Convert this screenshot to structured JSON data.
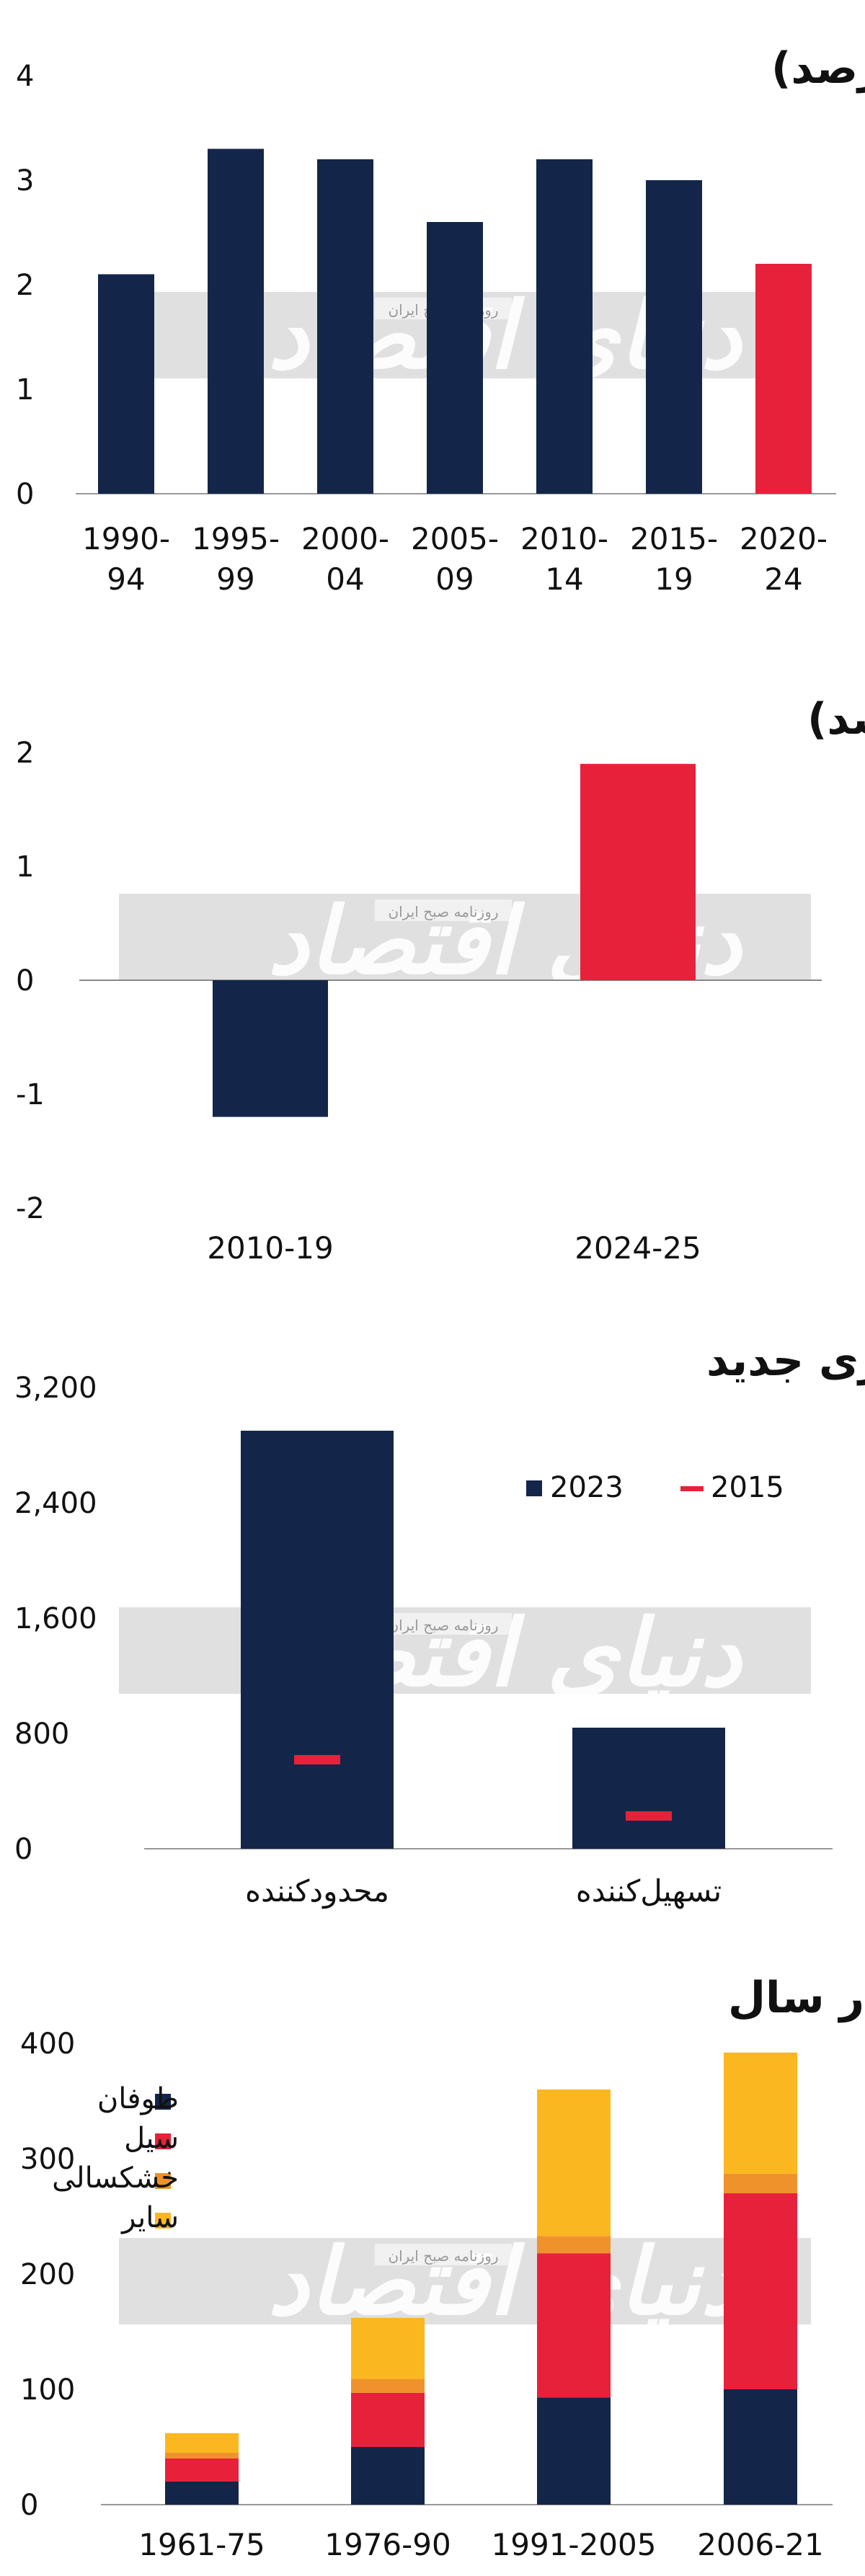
{
  "watermark": {
    "main": "دنیای اقتصاد",
    "sub": "روزنامه صبح ایران"
  },
  "colors": {
    "navy": "#13264a",
    "red": "#e8213a",
    "orange": "#f0922b",
    "amber": "#fbb720",
    "watermark": "#d6d6d6"
  },
  "chart_data": [
    {
      "type": "bar",
      "title": "میانگین رشد GDP جهانی (درصد)",
      "categories": [
        "1990-94",
        "1995-99",
        "2000-04",
        "2005-09",
        "2010-14",
        "2015-19",
        "2020-24"
      ],
      "category_lines": [
        [
          "1990-",
          "94"
        ],
        [
          "1995-",
          "99"
        ],
        [
          "2000-",
          "04"
        ],
        [
          "2005-",
          "09"
        ],
        [
          "2010-",
          "14"
        ],
        [
          "2015-",
          "19"
        ],
        [
          "2020-",
          "24"
        ]
      ],
      "values": [
        2.1,
        3.3,
        3.2,
        2.6,
        3.2,
        3.0,
        2.2
      ],
      "bar_colors": [
        "#13264a",
        "#13264a",
        "#13264a",
        "#13264a",
        "#13264a",
        "#13264a",
        "#e8213a"
      ],
      "ylim": [
        0,
        4
      ],
      "yticks": [
        "0",
        "1",
        "2",
        "3",
        "4"
      ]
    },
    {
      "type": "bar",
      "title": "میانگین نرخ بهره واقعی جهانی(درصد)",
      "categories": [
        "2010-19",
        "2024-25"
      ],
      "values": [
        -1.2,
        1.9
      ],
      "bar_colors": [
        "#13264a",
        "#e8213a"
      ],
      "ylim": [
        -2,
        2
      ],
      "yticks": [
        "-2",
        "-1",
        "0",
        "1",
        "2"
      ]
    },
    {
      "type": "bar",
      "title": "تعداد مصوبات تجاری جدید",
      "categories": [
        "محدودکننده",
        "تسهیل‌کننده"
      ],
      "series": [
        {
          "name": "2023",
          "values": [
            2900,
            840
          ]
        },
        {
          "name": "2015",
          "values": [
            620,
            230
          ]
        }
      ],
      "ylim": [
        0,
        3200
      ],
      "yticks": [
        "0",
        "800",
        "1,600",
        "2,400",
        "3,200"
      ],
      "legend": [
        "2023",
        "2015"
      ]
    },
    {
      "type": "bar",
      "title": "تعداد بلایای طبیعی در سال",
      "categories": [
        "1961-75",
        "1976-90",
        "1991-2005",
        "2006-21"
      ],
      "series": [
        {
          "name": "طوفان",
          "values": [
            20,
            50,
            93,
            100
          ]
        },
        {
          "name": "سیل",
          "values": [
            20,
            47,
            125,
            170
          ]
        },
        {
          "name": "خشکسالی",
          "values": [
            5,
            12,
            15,
            17
          ]
        },
        {
          "name": "سایر",
          "values": [
            17,
            53,
            127,
            105
          ]
        }
      ],
      "ylim": [
        0,
        400
      ],
      "yticks": [
        "0",
        "100",
        "200",
        "300",
        "400"
      ],
      "legend_position": "top-left"
    }
  ]
}
